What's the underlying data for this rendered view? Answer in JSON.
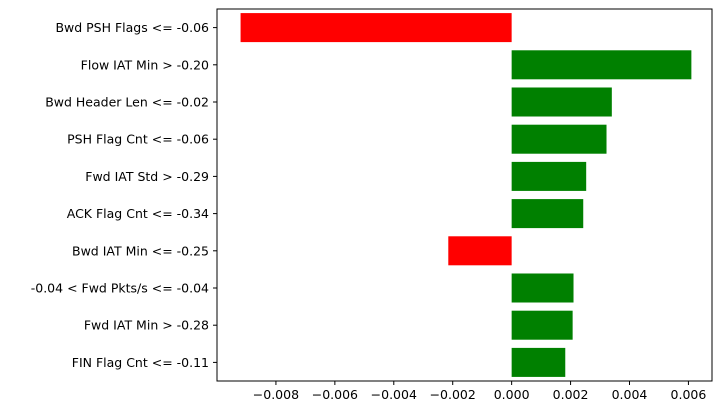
{
  "chart_data": {
    "type": "bar",
    "orientation": "horizontal",
    "categories": [
      "Bwd PSH Flags <= -0.06",
      "Flow IAT Min > -0.20",
      "Bwd Header Len <= -0.02",
      "PSH Flag Cnt <= -0.06",
      "Fwd IAT Std > -0.29",
      "ACK Flag Cnt <= -0.34",
      "Bwd IAT Min <= -0.25",
      "-0.04 < Fwd Pkts/s <= -0.04",
      "Fwd IAT Min > -0.28",
      "FIN Flag Cnt <= -0.11"
    ],
    "values": [
      -0.0092,
      0.0061,
      0.0034,
      0.00322,
      0.00253,
      0.00243,
      -0.00215,
      0.0021,
      0.00207,
      0.00182
    ],
    "positive_color": "#008000",
    "negative_color": "#ff0000",
    "xlim": [
      -0.01,
      0.0068
    ],
    "xticks": [
      -0.008,
      -0.006,
      -0.004,
      -0.002,
      0.0,
      0.002,
      0.004,
      0.006
    ],
    "xtick_labels": [
      "−0.008",
      "−0.006",
      "−0.004",
      "−0.002",
      "0.000",
      "0.002",
      "0.004",
      "0.006"
    ],
    "title": "",
    "xlabel": "",
    "ylabel": "",
    "grid": false
  }
}
